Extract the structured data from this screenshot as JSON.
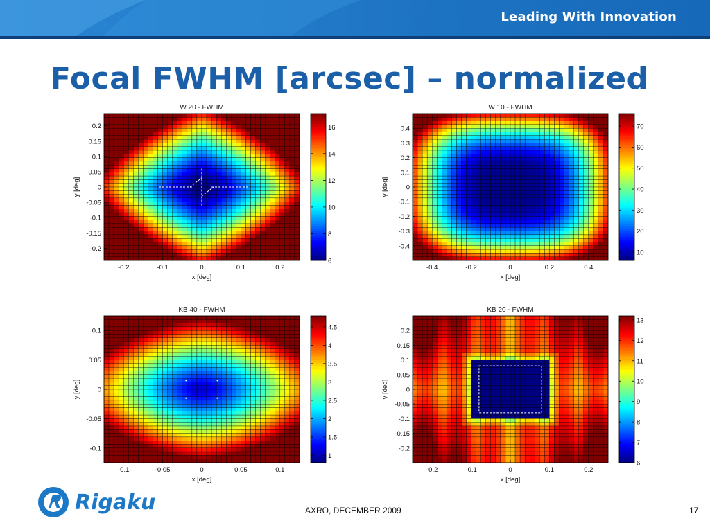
{
  "header": {
    "tagline": "Leading With Innovation",
    "title": "Focal FWHM [arcsec] – normalized"
  },
  "footer": {
    "text": "AXRO, DECEMBER 2009",
    "page_number": "17",
    "logo_text": "Rigaku"
  },
  "colors": {
    "banner_blue": "#1b79c8",
    "title_blue": "#1a5fa8",
    "colormap": "jet"
  },
  "chart_data": [
    {
      "type": "heatmap",
      "title": "W 20 - FWHM",
      "xlabel": "x [deg]",
      "ylabel": "y [deg]",
      "xlim": [
        -0.25,
        0.25
      ],
      "ylim": [
        -0.24,
        0.24
      ],
      "xticks": [
        -0.2,
        -0.1,
        0,
        0.1,
        0.2
      ],
      "xtick_labels": [
        "-0.2",
        "-0.1",
        "0",
        "0.1",
        "0.2"
      ],
      "yticks": [
        0.2,
        0.15,
        0.1,
        0.05,
        0,
        -0.05,
        -0.1,
        -0.15,
        -0.2
      ],
      "ytick_labels": [
        "0.2",
        "0.15",
        "0.1",
        "0.05",
        "0",
        "-0.05",
        "-0.1",
        "-0.15",
        "-0.2"
      ],
      "clim": [
        6,
        17
      ],
      "colorbar_ticks": [
        16,
        14,
        12,
        10,
        8,
        6
      ],
      "colorbar_labels": [
        "16",
        "14",
        "12",
        "10",
        "8",
        "6"
      ],
      "grid_size": [
        40,
        40
      ],
      "field": {
        "center": 6,
        "edge": 17,
        "pattern": "diamond"
      },
      "overlay": "cross"
    },
    {
      "type": "heatmap",
      "title": "W 10 - FWHM",
      "xlabel": "x [deg]",
      "ylabel": "y [deg]",
      "xlim": [
        -0.5,
        0.5
      ],
      "ylim": [
        -0.5,
        0.5
      ],
      "xticks": [
        -0.4,
        -0.2,
        0,
        0.2,
        0.4
      ],
      "xtick_labels": [
        "-0.4",
        "-0.2",
        "0",
        "0.2",
        "0.4"
      ],
      "yticks": [
        0.4,
        0.3,
        0.2,
        0.1,
        0,
        -0.1,
        -0.2,
        -0.3,
        -0.4
      ],
      "ytick_labels": [
        "0.4",
        "0.3",
        "0.2",
        "0.1",
        "0",
        "-0.1",
        "-0.2",
        "-0.3",
        "-0.4"
      ],
      "clim": [
        6,
        76
      ],
      "colorbar_ticks": [
        70,
        60,
        50,
        40,
        30,
        20,
        10
      ],
      "colorbar_labels": [
        "70",
        "60",
        "50",
        "40",
        "30",
        "20",
        "10"
      ],
      "grid_size": [
        40,
        40
      ],
      "field": {
        "center": 7,
        "edge": 76,
        "pattern": "ellipse"
      },
      "overlay": "none"
    },
    {
      "type": "heatmap",
      "title": "KB 40 - FWHM",
      "xlabel": "x [deg]",
      "ylabel": "y [deg]",
      "xlim": [
        -0.125,
        0.125
      ],
      "ylim": [
        -0.125,
        0.125
      ],
      "xticks": [
        -0.1,
        -0.05,
        0,
        0.05,
        0.1
      ],
      "xtick_labels": [
        "-0.1",
        "-0.05",
        "0",
        "0.05",
        "0.1"
      ],
      "yticks": [
        0.1,
        0.05,
        0,
        -0.05,
        -0.1
      ],
      "ytick_labels": [
        "0.1",
        "0.05",
        "0",
        "-0.05",
        "-0.1"
      ],
      "clim": [
        0.8,
        4.8
      ],
      "colorbar_ticks": [
        4.5,
        4,
        3.5,
        3,
        2.5,
        2,
        1.5,
        1
      ],
      "colorbar_labels": [
        "4.5",
        "4",
        "3.5",
        "3",
        "2.5",
        "2",
        "1.5",
        "1"
      ],
      "grid_size": [
        40,
        40
      ],
      "field": {
        "center": 1.1,
        "edge": 4.8,
        "pattern": "ellipse-wide"
      },
      "overlay": "dots"
    },
    {
      "type": "heatmap",
      "title": "KB 20 - FWHM",
      "xlabel": "x [deg]",
      "ylabel": "y [deg]",
      "xlim": [
        -0.25,
        0.25
      ],
      "ylim": [
        -0.25,
        0.25
      ],
      "xticks": [
        -0.2,
        -0.1,
        0,
        0.1,
        0.2
      ],
      "xtick_labels": [
        "-0.2",
        "-0.1",
        "0",
        "0.1",
        "0.2"
      ],
      "yticks": [
        0.2,
        0.15,
        0.1,
        0.05,
        0,
        -0.05,
        -0.1,
        -0.15,
        -0.2
      ],
      "ytick_labels": [
        "0.2",
        "0.15",
        "0.1",
        "0.05",
        "0",
        "-0.05",
        "-0.1",
        "-0.15",
        "-0.2"
      ],
      "clim": [
        6,
        13.2
      ],
      "colorbar_ticks": [
        13,
        12,
        11,
        10,
        9,
        8,
        7,
        6
      ],
      "colorbar_labels": [
        "13",
        "12",
        "11",
        "10",
        "9",
        "8",
        "7",
        "6"
      ],
      "grid_size": [
        40,
        40
      ],
      "field": {
        "center": 6,
        "edge": 13,
        "pattern": "square"
      },
      "overlay": "square"
    }
  ]
}
